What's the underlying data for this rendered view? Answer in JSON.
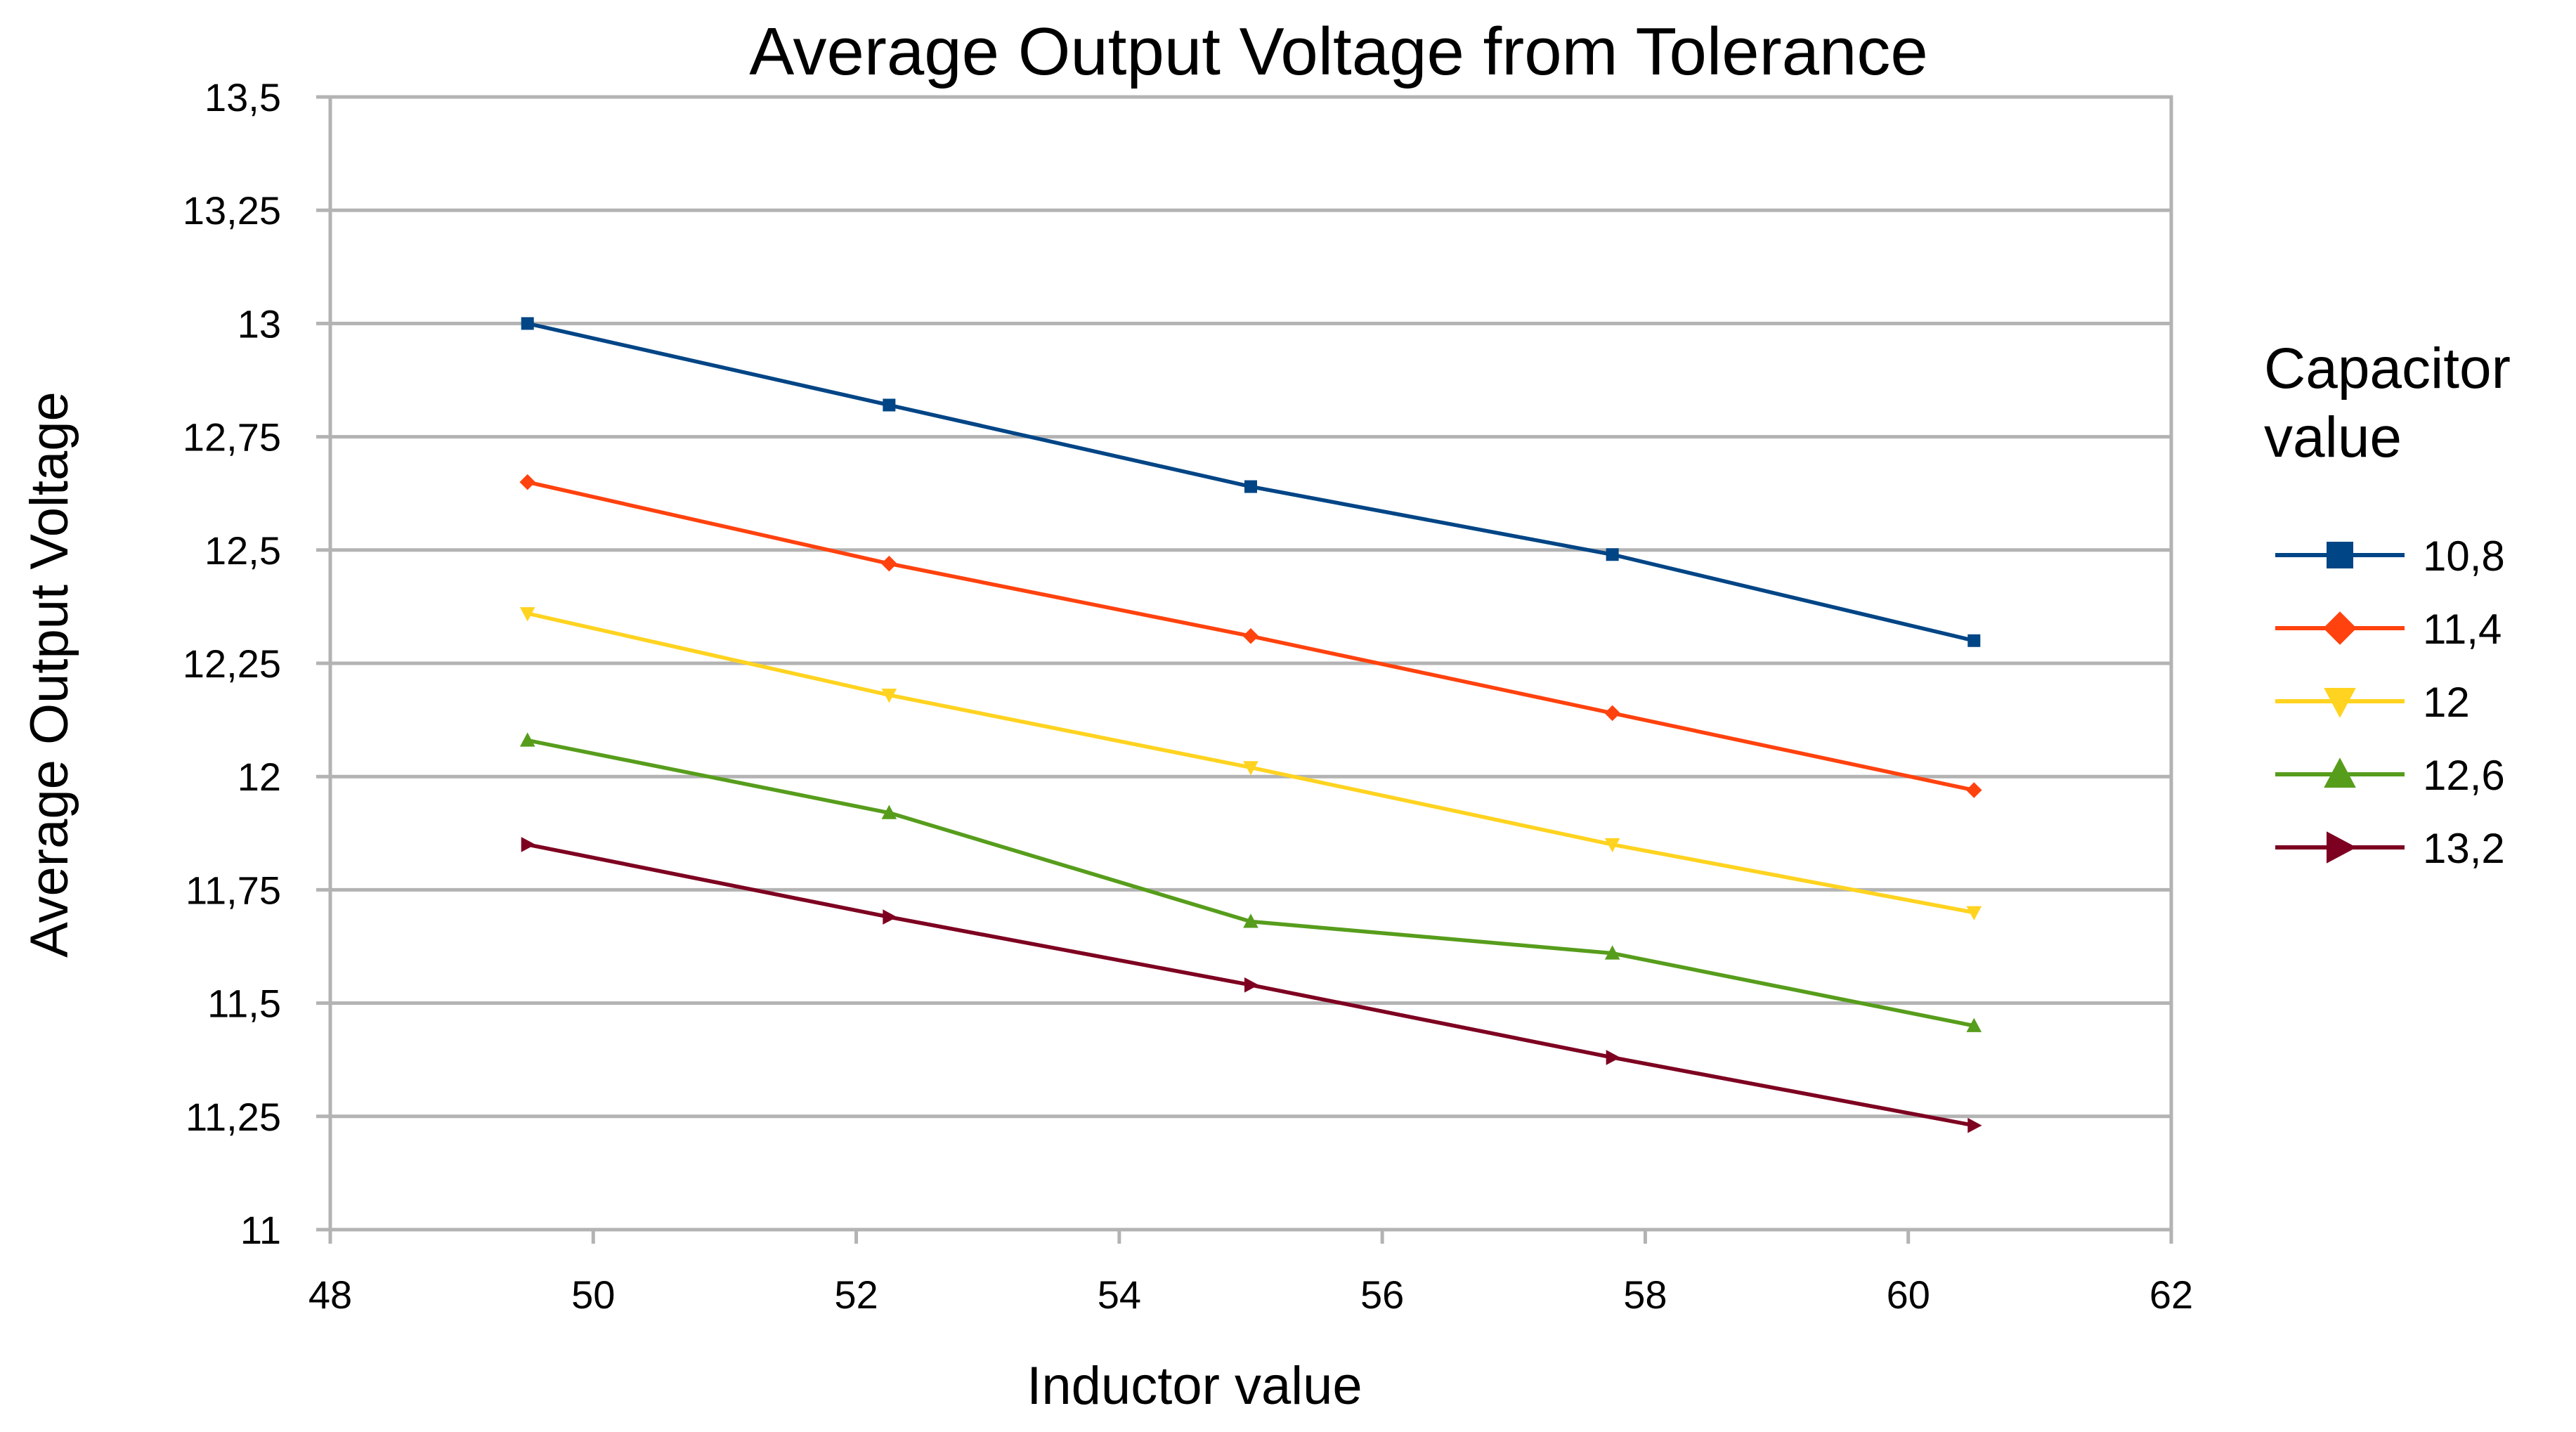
{
  "chart_data": {
    "type": "line",
    "title": "Average Output Voltage from Tolerance",
    "xlabel": "Inductor value",
    "ylabel": "Average Output Voltage",
    "xlim": [
      48,
      62
    ],
    "ylim": [
      11,
      13.5
    ],
    "x_ticks": [
      48,
      50,
      52,
      54,
      56,
      58,
      60,
      62
    ],
    "x_tick_labels": [
      "48",
      "50",
      "52",
      "54",
      "56",
      "58",
      "60",
      "62"
    ],
    "y_ticks": [
      11,
      11.25,
      11.5,
      11.75,
      12,
      12.25,
      12.5,
      12.75,
      13,
      13.25,
      13.5
    ],
    "y_tick_labels": [
      "11",
      "11,25",
      "11,5",
      "11,75",
      "12",
      "12,25",
      "12,5",
      "12,75",
      "13",
      "13,25",
      "13,5"
    ],
    "grid": true,
    "legend_title": "Capacitor value",
    "legend_position": "right",
    "x": [
      49.5,
      52.25,
      55,
      57.75,
      60.5
    ],
    "series": [
      {
        "name": "10,8",
        "color": "#004586",
        "marker": "square",
        "values": [
          13.0,
          12.82,
          12.64,
          12.49,
          12.3
        ]
      },
      {
        "name": "11,4",
        "color": "#ff420e",
        "marker": "diamond",
        "values": [
          12.65,
          12.47,
          12.31,
          12.14,
          11.97
        ]
      },
      {
        "name": "12",
        "color": "#ffd320",
        "marker": "triangle-down",
        "values": [
          12.36,
          12.18,
          12.02,
          11.85,
          11.7
        ]
      },
      {
        "name": "12,6",
        "color": "#579d1c",
        "marker": "triangle-up",
        "values": [
          12.08,
          11.92,
          11.68,
          11.61,
          11.45
        ]
      },
      {
        "name": "13,2",
        "color": "#7e0021",
        "marker": "triangle-right",
        "values": [
          11.85,
          11.69,
          11.54,
          11.38,
          11.23
        ]
      }
    ]
  }
}
